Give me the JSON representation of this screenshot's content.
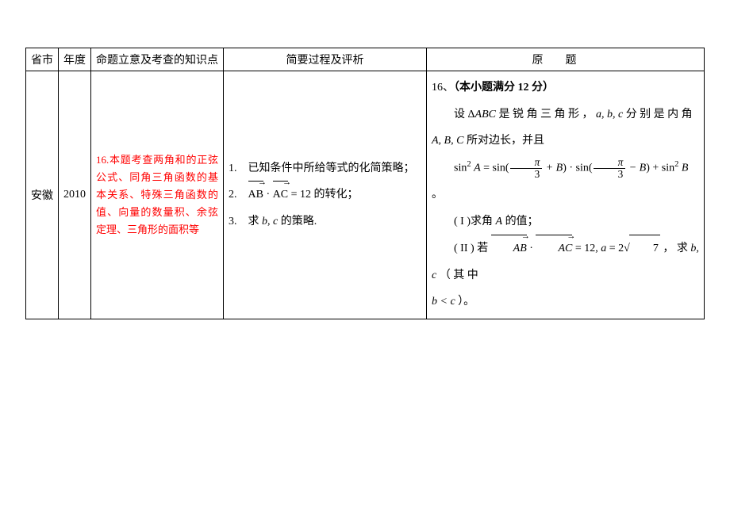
{
  "headers": {
    "province": "省市",
    "year": "年度",
    "topic": "命题立意及考查的知识点",
    "analysis": "简要过程及评析",
    "original": "原题"
  },
  "row": {
    "province": "安徽",
    "year": "2010",
    "topic": "16.本题考查两角和的正弦公式、同角三角函数的基本关系、特殊三角函数的值、向量的数量积、余弦定理、三角形的面积等",
    "analysis": {
      "items": [
        {
          "num": "1.",
          "text": "已知条件中所给等式的化简策略；"
        },
        {
          "num": "2.",
          "html": "<span class=\"v\">AB<span class=\"arrow\">&rarr;</span></span> · <span class=\"v\">AC<span class=\"arrow\">&rarr;</span></span> = 12 的转化；"
        },
        {
          "num": "3.",
          "html": "求 <i>b</i>, <i>c</i> 的策略."
        }
      ]
    },
    "original": {
      "qnum": "16、",
      "qtitle": "（本小题满分 12 分）",
      "line1_pre": "设 Δ",
      "line1_abc": "ABC",
      "line1_mid": " 是 锐 角 三 角 形 ， ",
      "line1_vars": "a, b, c",
      "line1_post": " 分 别 是 内 角",
      "line2_pre": "",
      "line2_ABC": "A, B, C",
      "line2_post": " 所对边长，并且",
      "eqn_lhs_pre": "sin",
      "eqn_A": "A",
      "eqn_eq": " = sin(",
      "eqn_plusB": " + B",
      "eqn_mid": ") · sin(",
      "eqn_minusB": " − B",
      "eqn_rhs_tail": ")  +  sin",
      "eqn_B": "B",
      "eqn_period": " 。",
      "part1": "( I )求角 ",
      "part1_A": "A",
      "part1_tail": " 的值；",
      "part2_pre": "( II ) 若 ",
      "part2_eq12": " = 12, ",
      "part2_a": "a",
      "part2_eq": " = 2",
      "part2_sqrt": "7",
      "part2_mid": " ， 求 ",
      "part2_bc": "b, c",
      "part2_note": " （ 其 中",
      "line_last_pre": "",
      "line_last_rel": "b < c",
      "line_last_post": " ）。"
    }
  },
  "colors": {
    "accent": "#ff0000",
    "border": "#000000",
    "bg": "#ffffff"
  }
}
